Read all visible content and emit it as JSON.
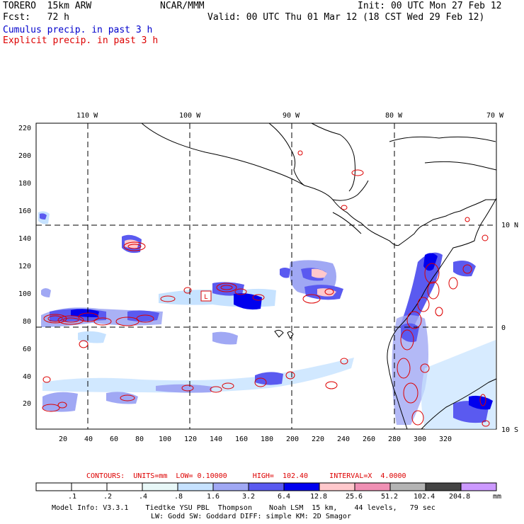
{
  "header": {
    "model": "TORERO  15km ARW",
    "org": "NCAR/MMM",
    "init": "Init: 00 UTC Mon 27 Feb 12",
    "fcst": "Fcst:   72 h",
    "valid": "Valid: 00 UTC Thu 01 Mar 12 (18 CST Wed 29 Feb 12)",
    "field1": "Cumulus precip. in past 3 h",
    "field2": "Explicit precip. in past 3 h",
    "field1_color": "#0000cc",
    "field2_color": "#dd0000"
  },
  "map": {
    "lon_labels": [
      "110 W",
      "100 W",
      "90 W",
      "80 W",
      "70 W"
    ],
    "lat_labels": [
      "10 N",
      "0",
      "10 S"
    ],
    "y_ticks": [
      "220",
      "200",
      "180",
      "160",
      "140",
      "120",
      "100",
      "80",
      "60",
      "40",
      "20"
    ],
    "x_ticks": [
      "20",
      "40",
      "60",
      "80",
      "100",
      "120",
      "140",
      "160",
      "180",
      "200",
      "220",
      "240",
      "260",
      "280",
      "300",
      "320"
    ],
    "low_box_label": "L"
  },
  "legend": {
    "contours": "CONTOURS:  UNITS=mm  LOW= 0.10000      HIGH=  102.40     INTERVAL=X  4.0000",
    "values": [
      ".1",
      ".2",
      ".4",
      ".8",
      "1.6",
      "3.2",
      "6.4",
      "12.8",
      "25.6",
      "51.2",
      "102.4",
      "204.8"
    ],
    "unit": "mm",
    "colors": [
      "#ffffff",
      "#ffffff",
      "#ffffff",
      "#e8f8f8",
      "#c6e2ff",
      "#a0a8f4",
      "#5a5af0",
      "#0000ee",
      "#ffc8cc",
      "#f090b4",
      "#b4b4b4",
      "#444444",
      "#cc99ff"
    ]
  },
  "footer": {
    "line1": "Model Info: V3.3.1    Tiedtke YSU PBL  Thompson    Noah LSM  15 km,    44 levels,   79 sec",
    "line2": "LW: Godd SW: Goddard DIFF: simple KM: 2D Smagor"
  }
}
